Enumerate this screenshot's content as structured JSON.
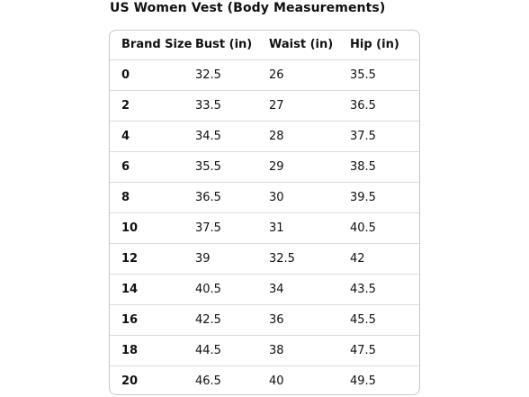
{
  "title": "US Women Vest (Body Measurements)",
  "table": {
    "headers": [
      "Brand Size",
      "Bust (in)",
      "Waist (in)",
      "Hip (in)"
    ],
    "rows": [
      [
        "0",
        "32.5",
        "26",
        "35.5"
      ],
      [
        "2",
        "33.5",
        "27",
        "36.5"
      ],
      [
        "4",
        "34.5",
        "28",
        "37.5"
      ],
      [
        "6",
        "35.5",
        "29",
        "38.5"
      ],
      [
        "8",
        "36.5",
        "30",
        "39.5"
      ],
      [
        "10",
        "37.5",
        "31",
        "40.5"
      ],
      [
        "12",
        "39",
        "32.5",
        "42"
      ],
      [
        "14",
        "40.5",
        "34",
        "43.5"
      ],
      [
        "16",
        "42.5",
        "36",
        "45.5"
      ],
      [
        "18",
        "44.5",
        "38",
        "47.5"
      ],
      [
        "20",
        "46.5",
        "40",
        "49.5"
      ]
    ]
  }
}
